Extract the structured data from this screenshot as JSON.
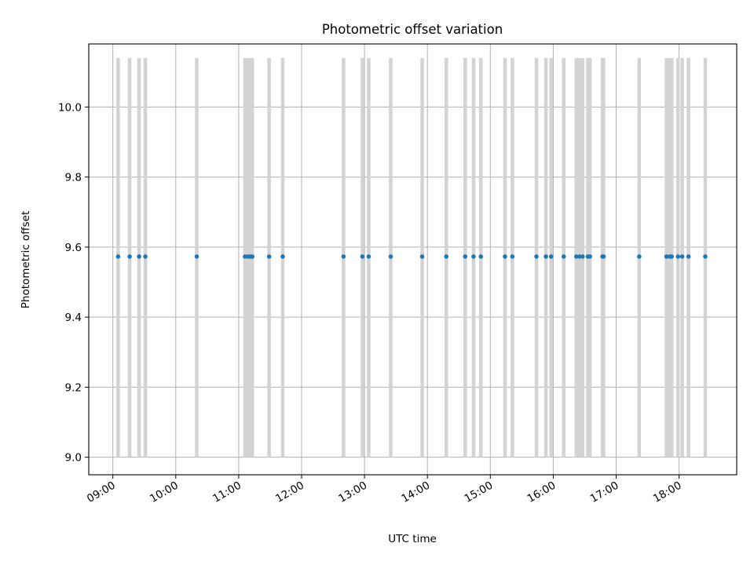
{
  "chart_data": {
    "type": "scatter",
    "title": "Photometric offset variation",
    "xlabel": "UTC time",
    "ylabel": "Photometric offset",
    "x_tick_labels": [
      "09:00",
      "10:00",
      "11:00",
      "12:00",
      "13:00",
      "14:00",
      "15:00",
      "16:00",
      "17:00",
      "18:00"
    ],
    "x_tick_hours": [
      9,
      10,
      11,
      12,
      13,
      14,
      15,
      16,
      17,
      18
    ],
    "y_tick_labels": [
      "9.0",
      "9.2",
      "9.4",
      "9.6",
      "9.8",
      "10.0"
    ],
    "y_tick_values": [
      9.0,
      9.2,
      9.4,
      9.6,
      9.8,
      10.0
    ],
    "xlim": [
      "08:37",
      "18:55"
    ],
    "ylim": [
      8.95,
      10.18
    ],
    "grid": true,
    "marker_color": "#1f77b4",
    "band_color": "#d3d3d3",
    "band_range": [
      9.0,
      10.14
    ],
    "y_value": 9.573,
    "x": [
      "09:05",
      "09:16",
      "09:25",
      "09:31",
      "10:20",
      "11:06",
      "11:09",
      "11:11",
      "11:13",
      "11:29",
      "11:42",
      "12:40",
      "12:58",
      "13:04",
      "13:25",
      "13:55",
      "14:18",
      "14:36",
      "14:44",
      "14:51",
      "15:14",
      "15:21",
      "15:44",
      "15:53",
      "15:58",
      "16:10",
      "16:22",
      "16:25",
      "16:28",
      "16:33",
      "16:35",
      "16:47",
      "16:48",
      "17:22",
      "17:48",
      "17:51",
      "17:53",
      "17:59",
      "18:03",
      "18:09",
      "18:25"
    ]
  }
}
